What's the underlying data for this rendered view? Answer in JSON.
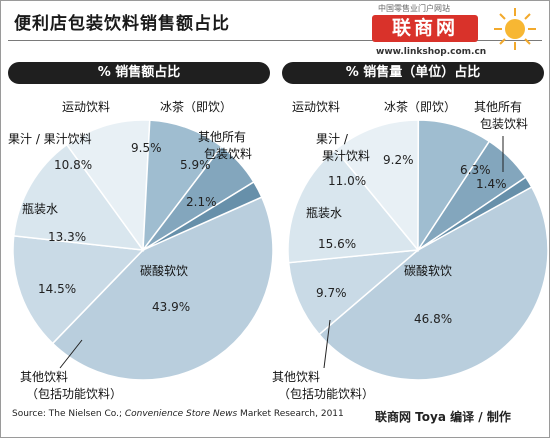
{
  "title": "便利店包装饮料销售额占比",
  "logo": {
    "top": "中国零售业门户网站",
    "main": "联商网",
    "url": "www.linkshop.com.cn"
  },
  "source_text": "Source: The Nielsen Co.; Convenience Store News Market Research, 2011",
  "credit": "联商网 Toya 编译 / 制作",
  "chart_data": [
    {
      "type": "pie",
      "title": "% 销售额占比",
      "slices": [
        {
          "label": "碳酸软饮",
          "value": 43.9,
          "display": "43.9%",
          "color": "#b9cedd"
        },
        {
          "label": "其他饮料\n（包括功能饮料）",
          "value": 14.5,
          "display": "14.5%",
          "color": "#c9dae6"
        },
        {
          "label": "瓶装水",
          "value": 13.3,
          "display": "13.3%",
          "color": "#d9e6ee"
        },
        {
          "label": "果汁 / 果汁饮料",
          "value": 10.8,
          "display": "10.8%",
          "color": "#e8f0f5"
        },
        {
          "label": "运动饮料",
          "value": 9.5,
          "display": "9.5%",
          "color": "#9fbdd0"
        },
        {
          "label": "冰茶（即饮）",
          "value": 5.9,
          "display": "5.9%",
          "color": "#83a6bd"
        },
        {
          "label": "其他所有\n包装饮料",
          "value": 2.1,
          "display": "2.1%",
          "color": "#6790aa"
        }
      ]
    },
    {
      "type": "pie",
      "title": "% 销售量（单位）占比",
      "slices": [
        {
          "label": "碳酸软饮",
          "value": 46.8,
          "display": "46.8%",
          "color": "#b9cedd"
        },
        {
          "label": "其他饮料\n（包括功能饮料）",
          "value": 9.7,
          "display": "9.7%",
          "color": "#c9dae6"
        },
        {
          "label": "瓶装水",
          "value": 15.6,
          "display": "15.6%",
          "color": "#d9e6ee"
        },
        {
          "label": "果汁 /\n果汁饮料",
          "value": 11.0,
          "display": "11.0%",
          "color": "#e8f0f5"
        },
        {
          "label": "运动饮料",
          "value": 9.2,
          "display": "9.2%",
          "color": "#9fbdd0"
        },
        {
          "label": "冰茶（即饮）",
          "value": 6.3,
          "display": "6.3%",
          "color": "#83a6bd"
        },
        {
          "label": "其他所有\n包装饮料",
          "value": 1.4,
          "display": "1.4%",
          "color": "#6790aa"
        }
      ]
    }
  ]
}
